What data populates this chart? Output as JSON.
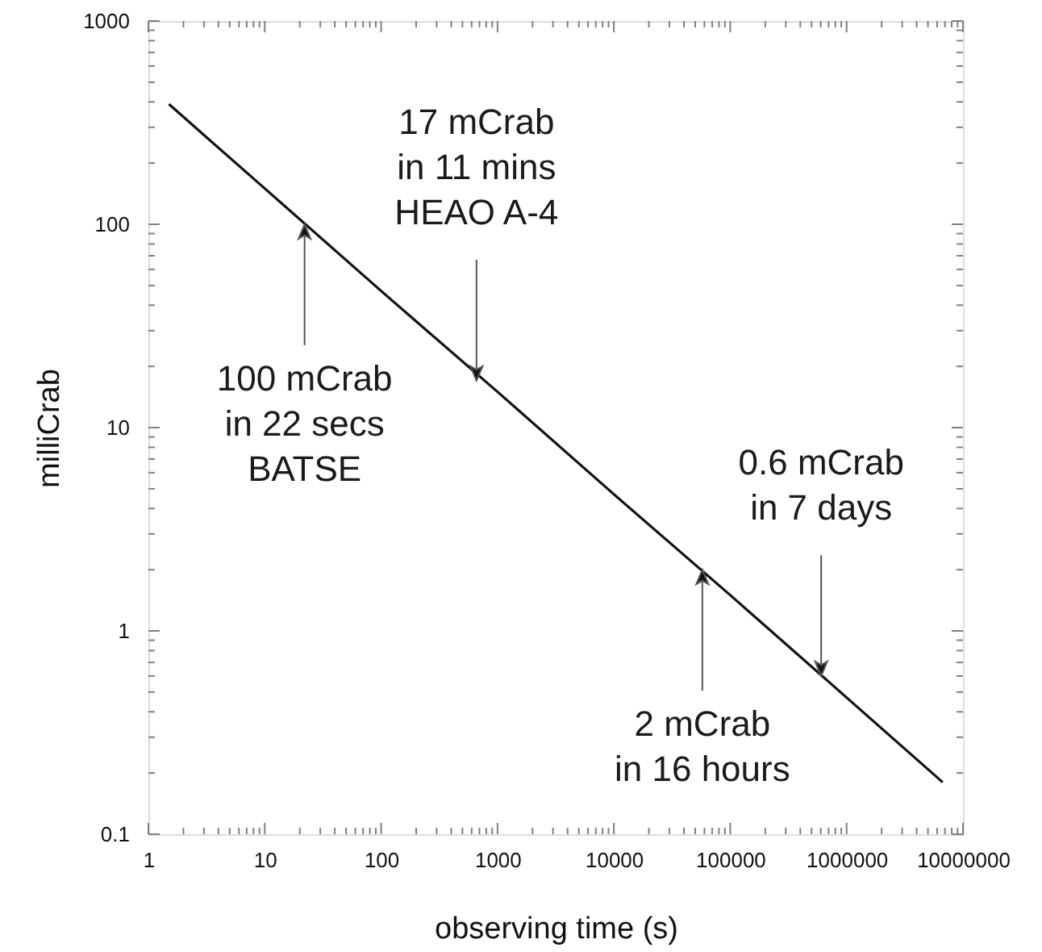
{
  "chart_data": {
    "type": "line",
    "xlabel": "observing time (s)",
    "ylabel": "milliCrab",
    "log": "xy",
    "x": [
      1.5,
      10,
      100,
      1000,
      10000,
      100000,
      1000000,
      6700000
    ],
    "series": [
      {
        "color": "#111111",
        "values": [
          390,
          150,
          47,
          15,
          4.7,
          1.5,
          0.47,
          0.18
        ]
      }
    ],
    "xlim": [
      1,
      10000000
    ],
    "ylim": [
      0.1,
      1000
    ],
    "xticks": [
      1,
      {
        "value": 2,
        "label": null
      },
      {
        "value": 3,
        "label": null
      },
      {
        "value": 4,
        "label": null
      },
      {
        "value": 5,
        "label": null
      },
      {
        "value": 6,
        "label": null
      },
      {
        "value": 7,
        "label": null
      },
      {
        "value": 8,
        "label": null
      },
      {
        "value": 9,
        "label": null
      },
      10,
      {
        "value": 20,
        "label": null
      },
      {
        "value": 30,
        "label": null
      },
      {
        "value": 40,
        "label": null
      },
      {
        "value": 50,
        "label": null
      },
      {
        "value": 60,
        "label": null
      },
      {
        "value": 70,
        "label": null
      },
      {
        "value": 80,
        "label": null
      },
      {
        "value": 90,
        "label": null
      },
      100,
      {
        "value": 200,
        "label": null
      },
      {
        "value": 300,
        "label": null
      },
      {
        "value": 400,
        "label": null
      },
      {
        "value": 500,
        "label": null
      },
      {
        "value": 600,
        "label": null
      },
      {
        "value": 700,
        "label": null
      },
      {
        "value": 800,
        "label": null
      },
      {
        "value": 900,
        "label": null
      },
      1000,
      {
        "value": 2000,
        "label": null
      },
      {
        "value": 3000,
        "label": null
      },
      {
        "value": 4000,
        "label": null
      },
      {
        "value": 5000,
        "label": null
      },
      {
        "value": 6000,
        "label": null
      },
      {
        "value": 7000,
        "label": null
      },
      {
        "value": 8000,
        "label": null
      },
      {
        "value": 9000,
        "label": null
      },
      10000,
      {
        "value": 20000,
        "label": null
      },
      {
        "value": 30000,
        "label": null
      },
      {
        "value": 40000,
        "label": null
      },
      {
        "value": 50000,
        "label": null
      },
      {
        "value": 60000,
        "label": null
      },
      {
        "value": 70000,
        "label": null
      },
      {
        "value": 80000,
        "label": null
      },
      {
        "value": 90000,
        "label": null
      },
      100000,
      {
        "value": 200000,
        "label": null
      },
      {
        "value": 300000,
        "label": null
      },
      {
        "value": 400000,
        "label": null
      },
      {
        "value": 500000,
        "label": null
      },
      {
        "value": 600000,
        "label": null
      },
      {
        "value": 700000,
        "label": null
      },
      {
        "value": 800000,
        "label": null
      },
      {
        "value": 900000,
        "label": null
      },
      1000000,
      {
        "value": 2000000,
        "label": null
      },
      {
        "value": 3000000,
        "label": null
      },
      {
        "value": 4000000,
        "label": null
      },
      {
        "value": 5000000,
        "label": null
      },
      {
        "value": 6000000,
        "label": null
      },
      {
        "value": 7000000,
        "label": null
      },
      {
        "value": 8000000,
        "label": null
      },
      {
        "value": 9000000,
        "label": null
      },
      10000000
    ],
    "yticks": [
      0.1,
      {
        "value": 0.2,
        "label": null
      },
      {
        "value": 0.3,
        "label": null
      },
      {
        "value": 0.4,
        "label": null
      },
      {
        "value": 0.5,
        "label": null
      },
      {
        "value": 0.6,
        "label": null
      },
      {
        "value": 0.7,
        "label": null
      },
      {
        "value": 0.8,
        "label": null
      },
      {
        "value": 0.9,
        "label": null
      },
      1,
      {
        "value": 2,
        "label": null
      },
      {
        "value": 3,
        "label": null
      },
      {
        "value": 4,
        "label": null
      },
      {
        "value": 5,
        "label": null
      },
      {
        "value": 6,
        "label": null
      },
      {
        "value": 7,
        "label": null
      },
      {
        "value": 8,
        "label": null
      },
      {
        "value": 9,
        "label": null
      },
      10,
      {
        "value": 20,
        "label": null
      },
      {
        "value": 30,
        "label": null
      },
      {
        "value": 40,
        "label": null
      },
      {
        "value": 50,
        "label": null
      },
      {
        "value": 60,
        "label": null
      },
      {
        "value": 70,
        "label": null
      },
      {
        "value": 80,
        "label": null
      },
      {
        "value": 90,
        "label": null
      },
      100,
      {
        "value": 200,
        "label": null
      },
      {
        "value": 300,
        "label": null
      },
      {
        "value": 400,
        "label": null
      },
      {
        "value": 500,
        "label": null
      },
      {
        "value": 600,
        "label": null
      },
      {
        "value": 700,
        "label": null
      },
      {
        "value": 800,
        "label": null
      },
      {
        "value": 900,
        "label": null
      },
      1000
    ],
    "annotations": [
      {
        "text": "100 mCrab\nin 22 secs\nBATSE",
        "x": 22,
        "y": 100
      },
      {
        "text": "17 mCrab\nin 11 mins\nHEAO A-4",
        "x": 660,
        "y": 17
      },
      {
        "text": "2 mCrab\nin 16 hours",
        "x": 57600,
        "y": 2
      },
      {
        "text": "0.6 mCrab\nin 7 days",
        "x": 604800,
        "y": 0.6
      }
    ]
  }
}
